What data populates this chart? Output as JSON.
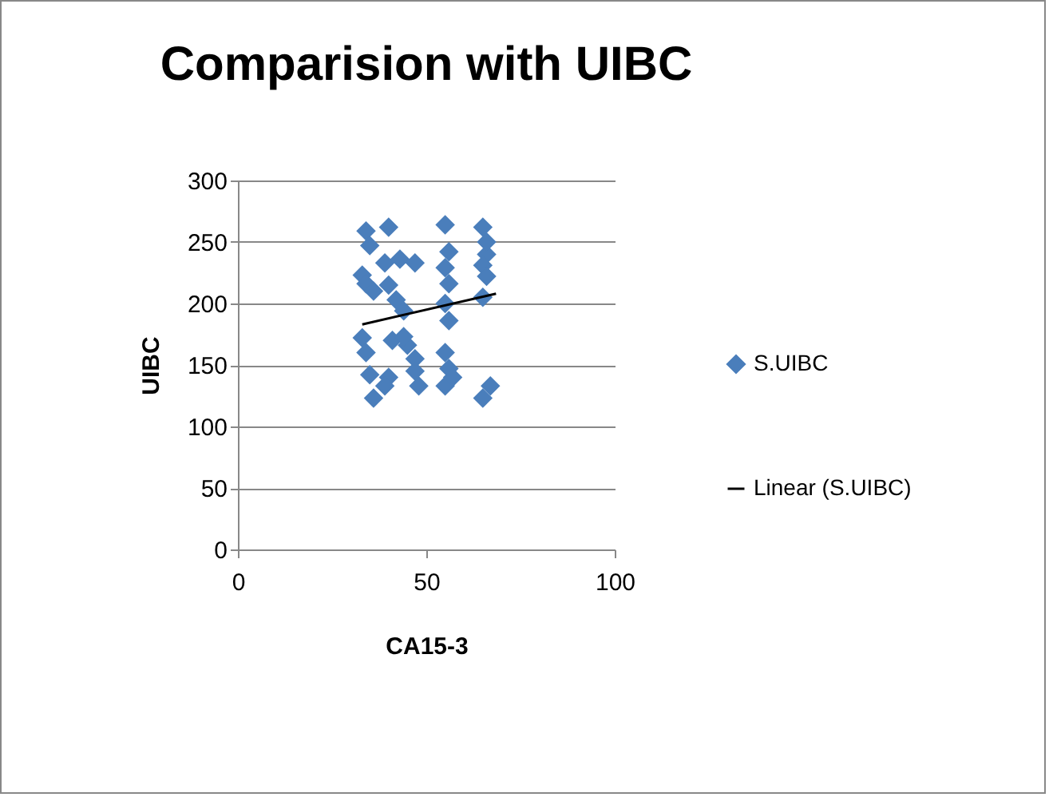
{
  "chart_data": {
    "type": "scatter",
    "title": "Comparision with UIBC",
    "xlabel": "CA15-3",
    "ylabel": "UIBC",
    "xlim": [
      0,
      100
    ],
    "xticks": [
      0,
      50,
      100
    ],
    "ylim": [
      0,
      300
    ],
    "yticks": [
      0,
      50,
      100,
      150,
      200,
      250,
      300
    ],
    "grid": "y",
    "legend": "right",
    "marker": "diamond",
    "series": [
      {
        "name": "S.UIBC",
        "color": "#4a7ebb",
        "x": [
          34,
          35,
          33,
          34,
          36,
          33,
          34,
          35,
          36,
          40,
          39,
          40,
          41,
          40,
          39,
          43,
          47,
          42,
          44,
          45,
          47,
          48,
          47,
          44,
          55,
          56,
          55,
          56,
          55,
          56,
          55,
          56,
          55,
          57,
          65,
          66,
          65,
          66,
          65,
          67,
          65,
          66
        ],
        "values": [
          259,
          247,
          223,
          216,
          210,
          172,
          160,
          142,
          123,
          262,
          233,
          215,
          170,
          140,
          133,
          236,
          233,
          203,
          194,
          166,
          155,
          133,
          145,
          173,
          264,
          242,
          229,
          216,
          200,
          186,
          160,
          147,
          133,
          140,
          262,
          240,
          231,
          222,
          205,
          133,
          123,
          250
        ]
      },
      {
        "name": "Linear (S.UIBC)",
        "type": "line",
        "color": "#000000",
        "marker": "none",
        "x": [
          33,
          68.5
        ],
        "values": [
          183,
          208
        ]
      }
    ]
  }
}
